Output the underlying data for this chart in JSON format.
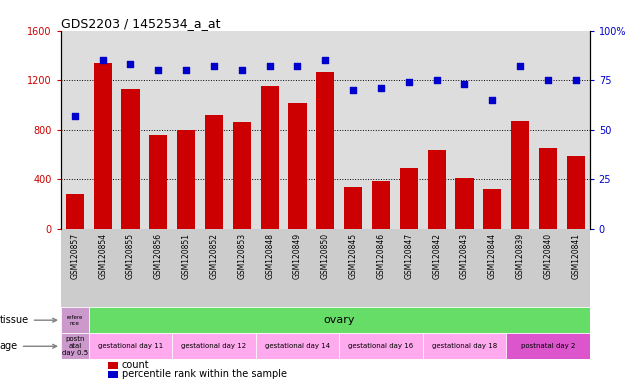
{
  "title": "GDS2203 / 1452534_a_at",
  "samples": [
    "GSM120857",
    "GSM120854",
    "GSM120855",
    "GSM120856",
    "GSM120851",
    "GSM120852",
    "GSM120853",
    "GSM120848",
    "GSM120849",
    "GSM120850",
    "GSM120845",
    "GSM120846",
    "GSM120847",
    "GSM120842",
    "GSM120843",
    "GSM120844",
    "GSM120839",
    "GSM120840",
    "GSM120841"
  ],
  "counts": [
    280,
    1340,
    1130,
    760,
    800,
    920,
    860,
    1150,
    1020,
    1270,
    340,
    390,
    490,
    640,
    410,
    320,
    870,
    650,
    590
  ],
  "percentiles": [
    57,
    85,
    83,
    80,
    80,
    82,
    80,
    82,
    82,
    85,
    70,
    71,
    74,
    75,
    73,
    65,
    82,
    75,
    75
  ],
  "bar_color": "#cc0000",
  "scatter_color": "#0000cc",
  "ylim_left": [
    0,
    1600
  ],
  "ylim_right": [
    0,
    100
  ],
  "yticks_left": [
    0,
    400,
    800,
    1200,
    1600
  ],
  "yticks_right": [
    0,
    25,
    50,
    75,
    100
  ],
  "tissue_ref_label": "refere\nnce",
  "tissue_ref_color": "#cc99cc",
  "tissue_ovary_label": "ovary",
  "tissue_ovary_color": "#66dd66",
  "age_groups": [
    {
      "label": "postn\natal\nday 0.5",
      "color": "#cc99cc",
      "count": 1
    },
    {
      "label": "gestational day 11",
      "color": "#ffaaee",
      "count": 3
    },
    {
      "label": "gestational day 12",
      "color": "#ffaaee",
      "count": 3
    },
    {
      "label": "gestational day 14",
      "color": "#ffaaee",
      "count": 3
    },
    {
      "label": "gestational day 16",
      "color": "#ffaaee",
      "count": 3
    },
    {
      "label": "gestational day 18",
      "color": "#ffaaee",
      "count": 3
    },
    {
      "label": "postnatal day 2",
      "color": "#dd55cc",
      "count": 3
    }
  ],
  "xtick_bg": "#cccccc",
  "legend_count_label": "count",
  "legend_percentile_label": "percentile rank within the sample",
  "chart_bg": "#dddddd",
  "white": "#ffffff"
}
